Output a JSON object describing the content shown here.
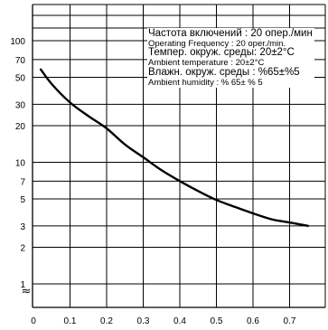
{
  "chart_data": {
    "type": "line",
    "title": "",
    "xlabel": "",
    "ylabel": "",
    "yscale": "log",
    "xlim": [
      0,
      0.8
    ],
    "ylim": [
      1,
      200
    ],
    "grid": true,
    "x_ticks": [
      "0",
      "0.1",
      "0.2",
      "0.3",
      "0.4",
      "0.5",
      "0.6",
      "0.7"
    ],
    "y_ticks": [
      "1",
      "2",
      "3",
      "5",
      "7",
      "10",
      "20",
      "30",
      "50",
      "70",
      "100"
    ],
    "axis_break": "≈",
    "series": [
      {
        "x": [
          0.02,
          0.05,
          0.1,
          0.15,
          0.2,
          0.25,
          0.3,
          0.35,
          0.4,
          0.45,
          0.5,
          0.55,
          0.6,
          0.65,
          0.7,
          0.75
        ],
        "y": [
          58,
          44,
          31,
          24,
          19,
          14,
          11,
          8.6,
          7.0,
          5.8,
          4.9,
          4.3,
          3.8,
          3.4,
          3.2,
          3.0
        ]
      }
    ],
    "legend_position": "top-right",
    "annotations": [
      {
        "label": "Частота включений",
        "value": ": 20 опер./мин",
        "size": "big"
      },
      {
        "label": "Operating Frequency",
        "value": ": 20 oper./min.",
        "size": "small"
      },
      {
        "label": "Темпер. окруж. среды:",
        "value": " 20±2°С",
        "size": "big"
      },
      {
        "label": "Ambient temperature",
        "value": ": 20±2°C",
        "size": "small"
      },
      {
        "label": "Влажн. окруж. среды :",
        "value": " %65±%5",
        "size": "big"
      },
      {
        "label": "Ambient humidity",
        "value": ": % 65± % 5",
        "size": "small"
      }
    ]
  }
}
